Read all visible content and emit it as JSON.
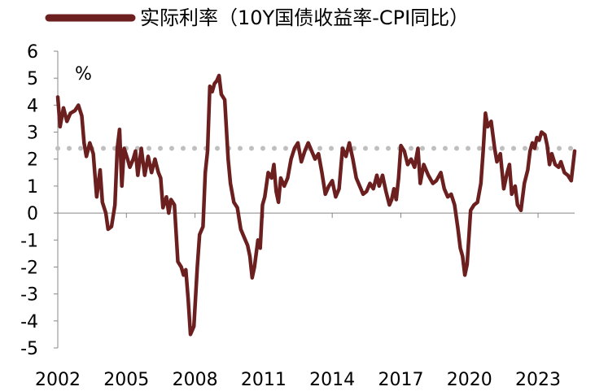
{
  "chart_data": {
    "type": "line",
    "title": "",
    "unit_label": "%",
    "series": [
      {
        "name": "实际利率（10Y国债收益率-CPI同比）",
        "color": "#6B1F1F",
        "points": [
          [
            2002.0,
            4.3
          ],
          [
            2002.1,
            3.2
          ],
          [
            2002.25,
            3.9
          ],
          [
            2002.4,
            3.4
          ],
          [
            2002.55,
            3.7
          ],
          [
            2002.75,
            3.8
          ],
          [
            2002.9,
            4.0
          ],
          [
            2003.05,
            3.6
          ],
          [
            2003.15,
            2.6
          ],
          [
            2003.25,
            2.1
          ],
          [
            2003.4,
            2.6
          ],
          [
            2003.55,
            2.2
          ],
          [
            2003.7,
            0.6
          ],
          [
            2003.85,
            1.6
          ],
          [
            2003.95,
            0.4
          ],
          [
            2004.1,
            0.0
          ],
          [
            2004.2,
            -0.6
          ],
          [
            2004.35,
            -0.5
          ],
          [
            2004.5,
            0.3
          ],
          [
            2004.6,
            2.4
          ],
          [
            2004.7,
            3.1
          ],
          [
            2004.8,
            1.0
          ],
          [
            2004.9,
            2.4
          ],
          [
            2005.05,
            2.0
          ],
          [
            2005.15,
            1.7
          ],
          [
            2005.3,
            2.0
          ],
          [
            2005.4,
            2.3
          ],
          [
            2005.5,
            1.4
          ],
          [
            2005.65,
            2.4
          ],
          [
            2005.8,
            1.4
          ],
          [
            2005.95,
            2.1
          ],
          [
            2006.1,
            1.5
          ],
          [
            2006.25,
            2.0
          ],
          [
            2006.4,
            1.5
          ],
          [
            2006.5,
            1.3
          ],
          [
            2006.6,
            0.2
          ],
          [
            2006.75,
            0.6
          ],
          [
            2006.85,
            0.0
          ],
          [
            2006.95,
            0.5
          ],
          [
            2007.1,
            0.3
          ],
          [
            2007.25,
            -1.8
          ],
          [
            2007.4,
            -2.0
          ],
          [
            2007.5,
            -2.3
          ],
          [
            2007.6,
            -2.1
          ],
          [
            2007.7,
            -3.2
          ],
          [
            2007.8,
            -4.5
          ],
          [
            2007.95,
            -4.2
          ],
          [
            2008.1,
            -2.0
          ],
          [
            2008.2,
            -0.8
          ],
          [
            2008.35,
            -0.5
          ],
          [
            2008.45,
            1.5
          ],
          [
            2008.55,
            2.3
          ],
          [
            2008.65,
            4.7
          ],
          [
            2008.75,
            4.5
          ],
          [
            2008.85,
            4.8
          ],
          [
            2008.95,
            4.9
          ],
          [
            2009.05,
            5.1
          ],
          [
            2009.15,
            4.4
          ],
          [
            2009.3,
            4.2
          ],
          [
            2009.45,
            2.0
          ],
          [
            2009.55,
            1.1
          ],
          [
            2009.7,
            0.4
          ],
          [
            2009.85,
            0.2
          ],
          [
            2010.0,
            -0.6
          ],
          [
            2010.15,
            -0.9
          ],
          [
            2010.3,
            -1.2
          ],
          [
            2010.4,
            -1.6
          ],
          [
            2010.5,
            -2.4
          ],
          [
            2010.6,
            -2.0
          ],
          [
            2010.75,
            -1.0
          ],
          [
            2010.85,
            -1.3
          ],
          [
            2010.95,
            0.3
          ],
          [
            2011.05,
            0.6
          ],
          [
            2011.2,
            1.5
          ],
          [
            2011.35,
            1.3
          ],
          [
            2011.45,
            1.8
          ],
          [
            2011.55,
            0.8
          ],
          [
            2011.65,
            0.4
          ],
          [
            2011.75,
            1.3
          ],
          [
            2011.9,
            1.0
          ],
          [
            2012.05,
            1.3
          ],
          [
            2012.2,
            2.0
          ],
          [
            2012.35,
            2.4
          ],
          [
            2012.5,
            2.6
          ],
          [
            2012.65,
            1.9
          ],
          [
            2012.8,
            2.3
          ],
          [
            2012.95,
            2.6
          ],
          [
            2013.1,
            2.3
          ],
          [
            2013.25,
            2.0
          ],
          [
            2013.4,
            2.2
          ],
          [
            2013.55,
            1.5
          ],
          [
            2013.7,
            0.7
          ],
          [
            2013.85,
            1.0
          ],
          [
            2014.0,
            1.2
          ],
          [
            2014.15,
            0.6
          ],
          [
            2014.3,
            0.9
          ],
          [
            2014.45,
            2.4
          ],
          [
            2014.6,
            2.1
          ],
          [
            2014.75,
            2.6
          ],
          [
            2014.9,
            2.0
          ],
          [
            2015.05,
            1.3
          ],
          [
            2015.2,
            1.0
          ],
          [
            2015.35,
            0.7
          ],
          [
            2015.5,
            0.8
          ],
          [
            2015.65,
            1.1
          ],
          [
            2015.8,
            0.9
          ],
          [
            2015.95,
            1.4
          ],
          [
            2016.05,
            1.0
          ],
          [
            2016.2,
            1.4
          ],
          [
            2016.35,
            0.8
          ],
          [
            2016.5,
            0.3
          ],
          [
            2016.6,
            0.5
          ],
          [
            2016.7,
            0.9
          ],
          [
            2016.8,
            0.5
          ],
          [
            2016.9,
            1.3
          ],
          [
            2017.0,
            2.5
          ],
          [
            2017.15,
            2.3
          ],
          [
            2017.3,
            1.8
          ],
          [
            2017.45,
            2.0
          ],
          [
            2017.6,
            1.7
          ],
          [
            2017.75,
            2.4
          ],
          [
            2017.85,
            1.1
          ],
          [
            2018.0,
            1.8
          ],
          [
            2018.2,
            1.4
          ],
          [
            2018.4,
            1.1
          ],
          [
            2018.55,
            1.2
          ],
          [
            2018.75,
            1.5
          ],
          [
            2018.9,
            0.9
          ],
          [
            2019.05,
            0.6
          ],
          [
            2019.2,
            0.7
          ],
          [
            2019.35,
            0.3
          ],
          [
            2019.5,
            -0.6
          ],
          [
            2019.6,
            -1.3
          ],
          [
            2019.7,
            -1.6
          ],
          [
            2019.8,
            -2.3
          ],
          [
            2019.9,
            -1.9
          ],
          [
            2020.05,
            0.1
          ],
          [
            2020.2,
            0.3
          ],
          [
            2020.35,
            0.4
          ],
          [
            2020.5,
            1.1
          ],
          [
            2020.6,
            2.3
          ],
          [
            2020.7,
            3.7
          ],
          [
            2020.8,
            3.2
          ],
          [
            2020.95,
            3.4
          ],
          [
            2021.1,
            2.4
          ],
          [
            2021.2,
            1.9
          ],
          [
            2021.35,
            2.2
          ],
          [
            2021.5,
            0.9
          ],
          [
            2021.65,
            1.5
          ],
          [
            2021.75,
            1.8
          ],
          [
            2021.85,
            0.7
          ],
          [
            2022.0,
            1.0
          ],
          [
            2022.1,
            0.3
          ],
          [
            2022.25,
            0.1
          ],
          [
            2022.4,
            1.1
          ],
          [
            2022.55,
            1.6
          ],
          [
            2022.65,
            2.3
          ],
          [
            2022.75,
            2.6
          ],
          [
            2022.85,
            2.4
          ],
          [
            2022.95,
            2.8
          ],
          [
            2023.05,
            2.7
          ],
          [
            2023.15,
            3.0
          ],
          [
            2023.3,
            2.9
          ],
          [
            2023.4,
            2.5
          ],
          [
            2023.5,
            1.8
          ],
          [
            2023.6,
            2.2
          ],
          [
            2023.75,
            1.8
          ],
          [
            2023.9,
            1.7
          ],
          [
            2024.0,
            1.9
          ],
          [
            2024.15,
            1.5
          ],
          [
            2024.3,
            1.4
          ],
          [
            2024.45,
            1.2
          ],
          [
            2024.6,
            2.3
          ]
        ]
      },
      {
        "name": "",
        "style": "dotted",
        "color": "#BFBFBF",
        "points": [
          [
            2002.0,
            2.4
          ],
          [
            2024.6,
            2.4
          ]
        ]
      }
    ],
    "x_tick_labels": [
      "2002",
      "2005",
      "2008",
      "2011",
      "2014",
      "2017",
      "2020",
      "2023"
    ],
    "x_ticks": [
      2002,
      2005,
      2008,
      2011,
      2014,
      2017,
      2020,
      2023
    ],
    "y_tick_labels": [
      "6",
      "5",
      "4",
      "3",
      "2",
      "1",
      "0",
      "-1",
      "-2",
      "-3",
      "-4",
      "-5"
    ],
    "y_ticks": [
      6,
      5,
      4,
      3,
      2,
      1,
      0,
      -1,
      -2,
      -3,
      -4,
      -5
    ],
    "xlim": [
      2002.0,
      2024.6
    ],
    "ylim": [
      -5,
      6
    ],
    "xlabel": "",
    "ylabel": "",
    "legend_position": "top",
    "grid": false
  }
}
